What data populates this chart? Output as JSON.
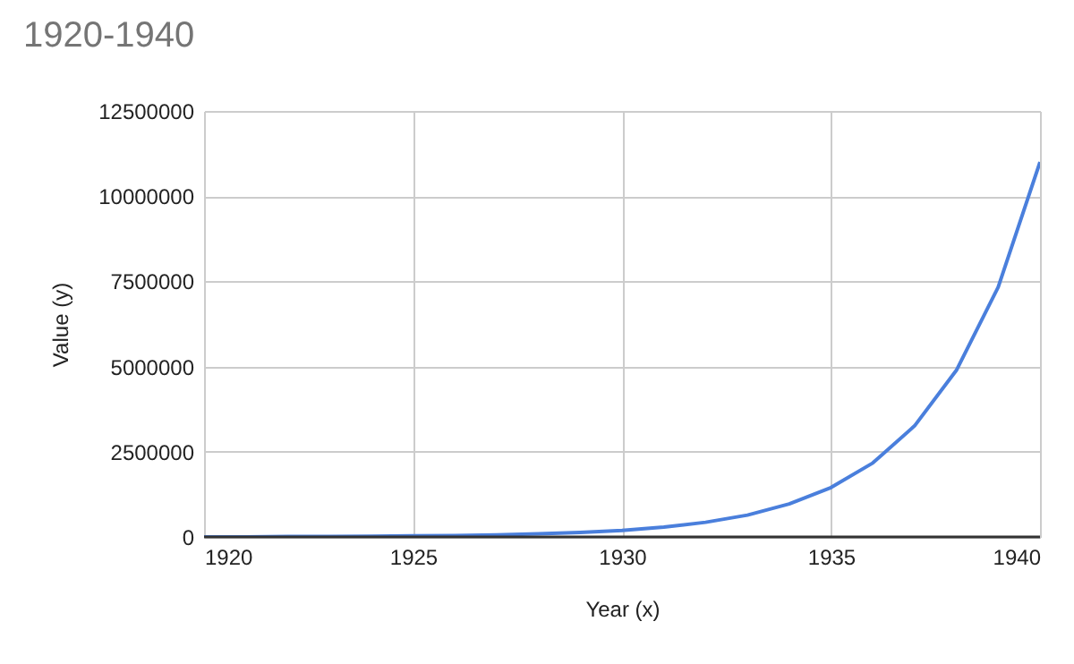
{
  "chart_data": {
    "type": "line",
    "title": "1920-1940",
    "xlabel": "Year (x)",
    "ylabel": "Value (y)",
    "x": [
      1920,
      1921,
      1922,
      1923,
      1924,
      1925,
      1926,
      1927,
      1928,
      1929,
      1930,
      1931,
      1932,
      1933,
      1934,
      1935,
      1936,
      1937,
      1938,
      1939,
      1940
    ],
    "series": [
      {
        "color": "#4a7fdc",
        "values": [
          0,
          0,
          10000,
          10000,
          20000,
          30000,
          40000,
          60000,
          90000,
          130000,
          190000,
          290000,
          430000,
          640000,
          970000,
          1450000,
          2170000,
          3260000,
          4890000,
          7330000,
          11000000
        ]
      }
    ],
    "xlim": [
      1920,
      1940
    ],
    "xticks": [
      1920,
      1925,
      1930,
      1935,
      1940
    ],
    "ylim": [
      0,
      12500000
    ],
    "yticks": [
      0,
      2500000,
      5000000,
      7500000,
      10000000,
      12500000
    ],
    "grid": true,
    "marker": "none",
    "line_style": "solid"
  }
}
